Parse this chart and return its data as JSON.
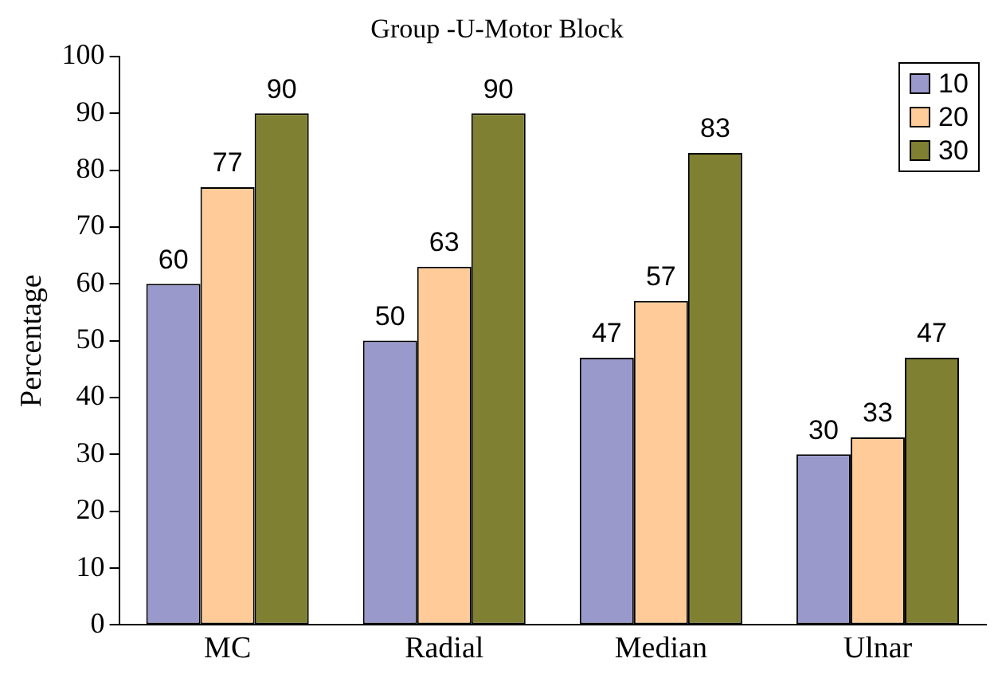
{
  "chart_data": {
    "type": "bar",
    "title": "Group -U-Motor Block",
    "ylabel": "Percentage",
    "categories": [
      "MC",
      "Radial",
      "Median",
      "Ulnar"
    ],
    "series": [
      {
        "name": "10",
        "color": "#9999cc",
        "values": [
          60,
          50,
          47,
          30
        ]
      },
      {
        "name": "20",
        "color": "#ffcc99",
        "values": [
          77,
          63,
          57,
          33
        ]
      },
      {
        "name": "30",
        "color": "#808033",
        "values": [
          90,
          90,
          83,
          47
        ]
      }
    ],
    "ylim": [
      0,
      100
    ],
    "yticks": [
      0,
      10,
      20,
      30,
      40,
      50,
      60,
      70,
      80,
      90,
      100
    ],
    "grid": false,
    "legend": "top right",
    "data_labels": true
  }
}
